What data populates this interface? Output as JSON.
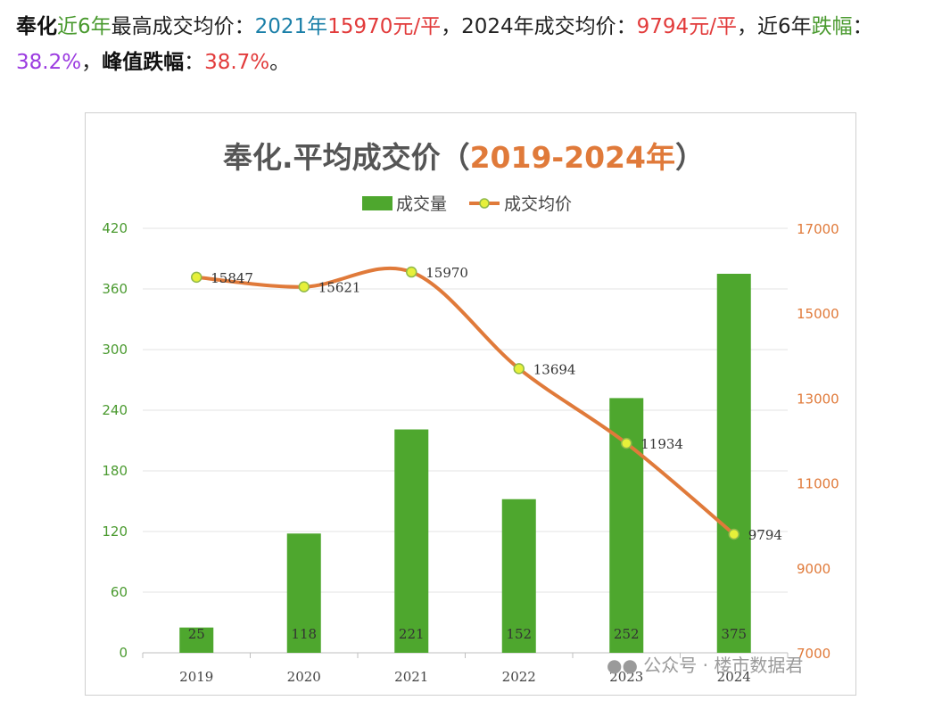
{
  "headline": {
    "area": "奉化",
    "near_years": "近6年",
    "label_max_price": "最高成交均价：",
    "max_year": "2021年",
    "max_price": "15970元/平",
    "sep1": "，",
    "label_2024": "2024年成交均价：",
    "price_2024": "9794元/平",
    "sep2": "，",
    "near6_prefix": "近6",
    "year_char": "年",
    "decline_word": "跌幅",
    "colon": "：",
    "decline_value": "38.2%",
    "sep3": "，",
    "peak_decline_label": "峰值跌幅",
    "colon2": "：",
    "peak_decline_value": "38.7%",
    "end": "。"
  },
  "watermark": "公众号 · 楼市数据君",
  "colors": {
    "bar": "#4ea72e",
    "line": "#e07a3a",
    "marker_fill": "#e6f03a",
    "title_orange": "#e07a3a",
    "left_axis": "#4a9a2f",
    "right_axis": "#e07a3a"
  },
  "chart_data": {
    "type": "bar",
    "title_main": "奉化.平均成交价（",
    "title_years": "2019-2024年",
    "title_end": "）",
    "legend_position": "top",
    "grid": true,
    "categories": [
      "2019",
      "2020",
      "2021",
      "2022",
      "2023",
      "2024"
    ],
    "series": [
      {
        "name": "成交量",
        "type": "bar",
        "axis": "left",
        "values": [
          25,
          118,
          221,
          152,
          252,
          375
        ]
      },
      {
        "name": "成交均价",
        "type": "line",
        "axis": "right",
        "values": [
          15847,
          15621,
          15970,
          13694,
          11934,
          9794
        ]
      }
    ],
    "y_left": {
      "min": 0,
      "max": 420,
      "ticks": [
        0,
        60,
        120,
        180,
        240,
        300,
        360,
        420
      ]
    },
    "y_right": {
      "min": 7000,
      "max": 17000,
      "ticks": [
        7000,
        9000,
        11000,
        13000,
        15000,
        17000
      ]
    }
  }
}
